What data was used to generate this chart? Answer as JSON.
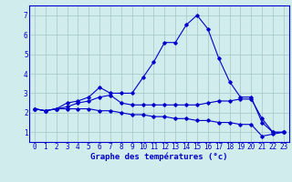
{
  "title": "Graphe des températures (°c)",
  "x_labels": [
    "0",
    "1",
    "2",
    "3",
    "4",
    "5",
    "6",
    "7",
    "8",
    "9",
    "10",
    "11",
    "12",
    "13",
    "14",
    "15",
    "16",
    "17",
    "18",
    "19",
    "20",
    "21",
    "22",
    "23"
  ],
  "x_values": [
    0,
    1,
    2,
    3,
    4,
    5,
    6,
    7,
    8,
    9,
    10,
    11,
    12,
    13,
    14,
    15,
    16,
    17,
    18,
    19,
    20,
    21,
    22,
    23
  ],
  "line1": [
    2.2,
    2.1,
    2.2,
    2.5,
    2.6,
    2.8,
    3.3,
    3.0,
    3.0,
    3.0,
    3.8,
    4.6,
    5.6,
    5.6,
    6.5,
    7.0,
    6.3,
    4.8,
    3.6,
    2.8,
    2.8,
    1.5,
    1.0,
    1.0
  ],
  "line2": [
    2.2,
    2.1,
    2.2,
    2.3,
    2.5,
    2.6,
    2.8,
    2.9,
    2.5,
    2.4,
    2.4,
    2.4,
    2.4,
    2.4,
    2.4,
    2.4,
    2.5,
    2.6,
    2.6,
    2.7,
    2.7,
    1.7,
    1.0,
    1.0
  ],
  "line3": [
    2.2,
    2.1,
    2.2,
    2.2,
    2.2,
    2.2,
    2.1,
    2.1,
    2.0,
    1.9,
    1.9,
    1.8,
    1.8,
    1.7,
    1.7,
    1.6,
    1.6,
    1.5,
    1.5,
    1.4,
    1.4,
    0.8,
    0.9,
    1.0
  ],
  "ylim": [
    0.5,
    7.5
  ],
  "yticks": [
    1,
    2,
    3,
    4,
    5,
    6,
    7
  ],
  "line_color": "#0000cc",
  "bg_color": "#d0ecec",
  "grid_color": "#aacccc",
  "axis_color": "#0000cc",
  "label_fontsize": 5.5,
  "title_fontsize": 6.5
}
